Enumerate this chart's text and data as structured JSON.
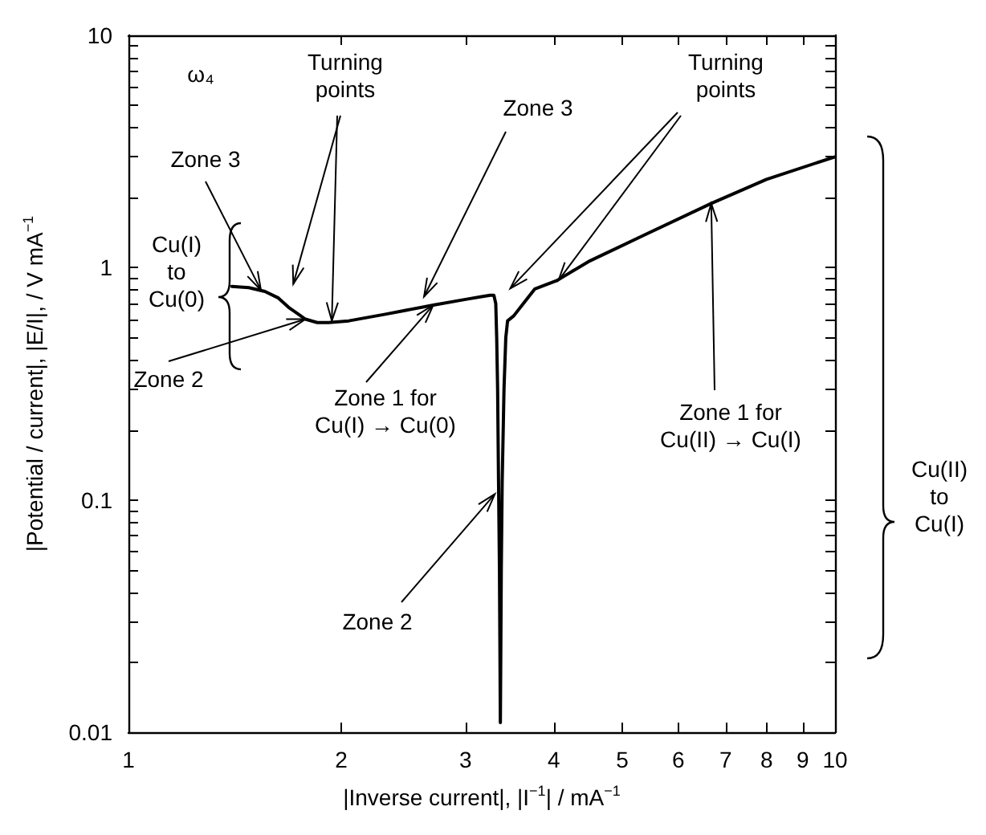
{
  "chart_data": {
    "type": "line",
    "xlabel": "|Inverse current|, |I$^{−1}$| / mA$^{−1}$",
    "ylabel": "|Potential / current|, |E/I|, / V mA$^{−1}$",
    "log": "xy",
    "xlim": [
      1,
      10
    ],
    "ylim": [
      0.01,
      10
    ],
    "xticks": [
      1,
      2,
      3,
      4,
      5,
      6,
      7,
      8,
      9,
      10
    ],
    "yticks": [
      0.01,
      {
        "value": 0.02,
        "label": null
      },
      {
        "value": 0.03,
        "label": null
      },
      {
        "value": 0.04,
        "label": null
      },
      {
        "value": 0.05,
        "label": null
      },
      {
        "value": 0.06,
        "label": null
      },
      {
        "value": 0.07,
        "label": null
      },
      {
        "value": 0.08,
        "label": null
      },
      {
        "value": 0.09,
        "label": null
      },
      0.1,
      {
        "value": 0.2,
        "label": null
      },
      {
        "value": 0.3,
        "label": null
      },
      {
        "value": 0.4,
        "label": null
      },
      {
        "value": 0.5,
        "label": null
      },
      {
        "value": 0.6,
        "label": null
      },
      {
        "value": 0.7,
        "label": null
      },
      {
        "value": 0.8,
        "label": null
      },
      {
        "value": 0.9,
        "label": null
      },
      1,
      {
        "value": 2,
        "label": null
      },
      {
        "value": 3,
        "label": null
      },
      {
        "value": 4,
        "label": null
      },
      {
        "value": 5,
        "label": null
      },
      {
        "value": 6,
        "label": null
      },
      {
        "value": 7,
        "label": null
      },
      {
        "value": 8,
        "label": null
      },
      {
        "value": 9,
        "label": null
      },
      10
    ],
    "series": [
      {
        "color": "#000000",
        "x": [
          1.4,
          1.48,
          1.56,
          1.63,
          1.69,
          1.74,
          1.78,
          1.85,
          1.92,
          2.05,
          2.31,
          2.7,
          3.0,
          3.16,
          3.25,
          3.29,
          3.31,
          3.32,
          3.33,
          3.34,
          3.35,
          3.36,
          3.37,
          3.38,
          3.4,
          3.42,
          3.44,
          3.51,
          3.62,
          3.76,
          4.04,
          4.5,
          5.34,
          6.68,
          8.0,
          10
        ],
        "values": [
          0.83,
          0.82,
          0.79,
          0.74,
          0.67,
          0.63,
          0.6,
          0.58,
          0.58,
          0.59,
          0.63,
          0.69,
          0.73,
          0.75,
          0.76,
          0.76,
          0.7,
          0.5,
          0.3,
          0.12,
          0.05,
          0.011,
          0.05,
          0.12,
          0.3,
          0.5,
          0.59,
          0.62,
          0.7,
          0.81,
          0.88,
          1.07,
          1.37,
          1.89,
          2.4,
          3.0
        ]
      }
    ],
    "annotations": [
      "ω₄",
      {
        "text": "Zone 3",
        "x": 1.54,
        "y": 0.8
      },
      {
        "text": "Turning\npoints",
        "x": 1.94,
        "y": 0.59
      },
      {
        "text": "Zone 3",
        "x": 2.62,
        "y": 0.75
      },
      {
        "text": "Turning\npoints",
        "x": 4.06,
        "y": 0.88
      },
      {
        "text": "Zone 2",
        "x": 1.78,
        "y": 0.6
      },
      {
        "text": "Zone 1 for\nCu(I) → Cu(0)",
        "x": 2.7,
        "y": 0.69
      },
      {
        "text": "Zone 2",
        "x": 3.3,
        "y": 0.106
      },
      {
        "text": "Zone 1 for\nCu(II) → Cu(I)",
        "x": 6.68,
        "y": 1.89
      },
      "Cu(I)\nto\nCu(0)",
      "Cu(II)\nto\nCu(I)"
    ]
  }
}
